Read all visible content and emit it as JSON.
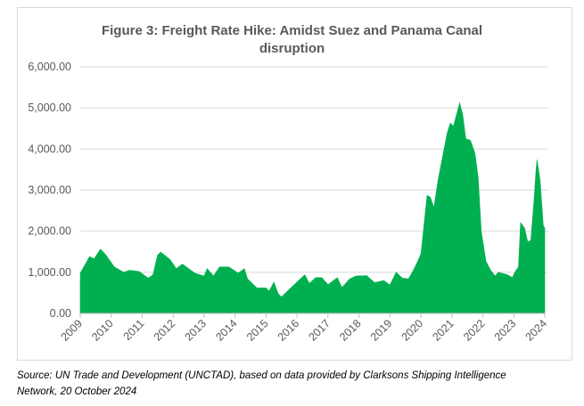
{
  "chart_data": {
    "type": "area",
    "title_line1": "Figure 3: Freight Rate Hike: Amidst Suez and Panama Canal",
    "title_line2": "disruption",
    "xlabel": "",
    "ylabel": "",
    "ylim": [
      0,
      6000
    ],
    "xlim": [
      2009,
      2024
    ],
    "y_ticks": [
      "0.00",
      "1,000.00",
      "2,000.00",
      "3,000.00",
      "4,000.00",
      "5,000.00",
      "6,000.00"
    ],
    "x_ticks": [
      "2009",
      "2010",
      "2011",
      "2012",
      "2013",
      "2014",
      "2015",
      "2016",
      "2017",
      "2018",
      "2019",
      "2020",
      "2021",
      "2022",
      "2023",
      "2024"
    ],
    "grid": true,
    "legend": "none",
    "color": "#00b050",
    "x": [
      2009.0,
      2009.3,
      2009.45,
      2009.65,
      2009.8,
      2010.1,
      2010.4,
      2010.6,
      2010.9,
      2011.1,
      2011.2,
      2011.35,
      2011.5,
      2011.6,
      2011.9,
      2012.1,
      2012.3,
      2012.7,
      2013.0,
      2013.1,
      2013.3,
      2013.5,
      2013.8,
      2014.1,
      2014.3,
      2014.4,
      2014.7,
      2015.0,
      2015.1,
      2015.25,
      2015.4,
      2015.5,
      2015.8,
      2016.0,
      2016.25,
      2016.4,
      2016.6,
      2016.8,
      2017.0,
      2017.3,
      2017.45,
      2017.7,
      2017.9,
      2018.25,
      2018.5,
      2018.8,
      2019.0,
      2019.2,
      2019.4,
      2019.6,
      2019.75,
      2019.9,
      2020.0,
      2020.1,
      2020.2,
      2020.3,
      2020.42,
      2020.55,
      2020.7,
      2020.85,
      2020.95,
      2021.05,
      2021.15,
      2021.25,
      2021.35,
      2021.45,
      2021.6,
      2021.75,
      2021.85,
      2021.95,
      2022.1,
      2022.25,
      2022.4,
      2022.5,
      2022.8,
      2022.95,
      2023.05,
      2023.15,
      2023.22,
      2023.35,
      2023.45,
      2023.55,
      2023.65,
      2023.72,
      2023.75,
      2023.85,
      2023.95,
      2024.0
    ],
    "values": [
      980,
      1380,
      1330,
      1560,
      1450,
      1130,
      1000,
      1050,
      1020,
      910,
      860,
      940,
      1420,
      1490,
      1310,
      1090,
      1200,
      980,
      910,
      1090,
      910,
      1130,
      1130,
      980,
      1090,
      840,
      620,
      620,
      540,
      760,
      470,
      400,
      620,
      760,
      940,
      730,
      870,
      870,
      700,
      870,
      630,
      840,
      910,
      920,
      750,
      800,
      690,
      1000,
      860,
      840,
      1040,
      1270,
      1450,
      2140,
      2870,
      2830,
      2580,
      3230,
      3810,
      4390,
      4630,
      4550,
      4830,
      5120,
      4830,
      4250,
      4210,
      3890,
      3300,
      2000,
      1270,
      1050,
      910,
      1000,
      940,
      870,
      1020,
      1130,
      2210,
      2070,
      1740,
      1780,
      2720,
      3520,
      3740,
      3230,
      2140,
      2070
    ]
  },
  "source": {
    "line1": "Source: UN Trade and Development (UNCTAD), based on data provided by Clarksons Shipping Intelligence",
    "line2": "Network, 20 October 2024"
  }
}
